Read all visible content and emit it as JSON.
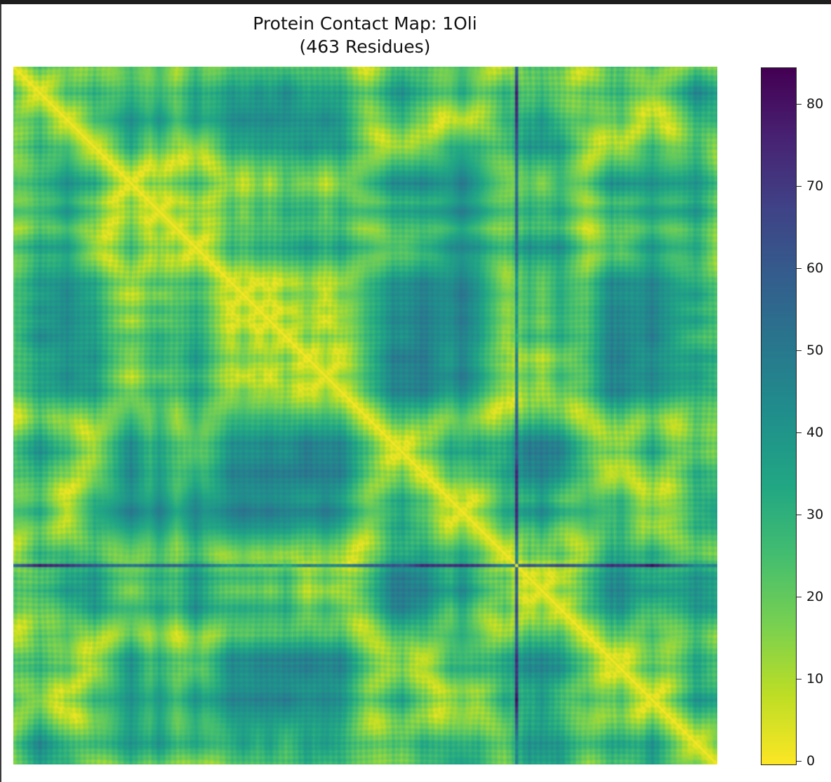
{
  "chart_data": {
    "type": "heatmap",
    "title_line1": "Protein Contact Map: 1Oli",
    "title_line2": "(463 Residues)",
    "n_residues": 463,
    "colormap": "viridis",
    "colormap_reversed": true,
    "value_range": [
      0,
      85
    ],
    "colorbar": {
      "ticks": [
        0,
        10,
        20,
        30,
        40,
        50,
        60,
        70,
        80
      ],
      "tick_labels": [
        "0",
        "10",
        "20",
        "30",
        "40",
        "50",
        "60",
        "70",
        "80"
      ]
    },
    "diagonal_value": 0,
    "dark_band_residues": [
      331,
      330
    ],
    "x_ticks_shown": false,
    "y_ticks_shown": false,
    "grid": false
  }
}
